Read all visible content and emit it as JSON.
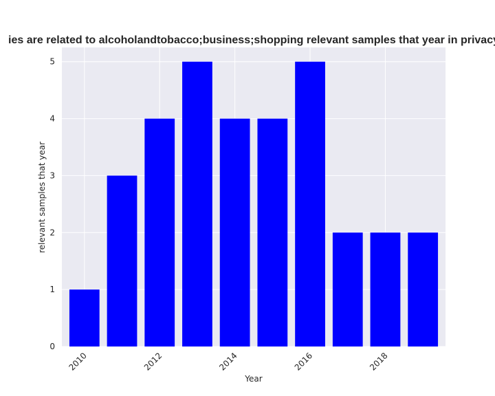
{
  "chart_data": {
    "type": "bar",
    "title": "ies are related to alcoholandtobacco;business;shopping relevant samples that year in privacy",
    "xlabel": "Year",
    "ylabel": "relevant samples that year",
    "x": [
      2010,
      2011,
      2012,
      2013,
      2014,
      2015,
      2016,
      2017,
      2018,
      2019
    ],
    "values": [
      1,
      3,
      4,
      5,
      4,
      4,
      5,
      2,
      2,
      2
    ],
    "xticks": [
      "2010",
      "2012",
      "2014",
      "2016",
      "2018"
    ],
    "yticks": [
      "0",
      "1",
      "2",
      "3",
      "4",
      "5"
    ],
    "xlim": [
      2009.4,
      2019.6
    ],
    "ylim": [
      0,
      5.25
    ],
    "grid": true,
    "bar_color": "#0000ff",
    "plot_background": "#eaeaf2",
    "grid_color": "#ffffff"
  }
}
